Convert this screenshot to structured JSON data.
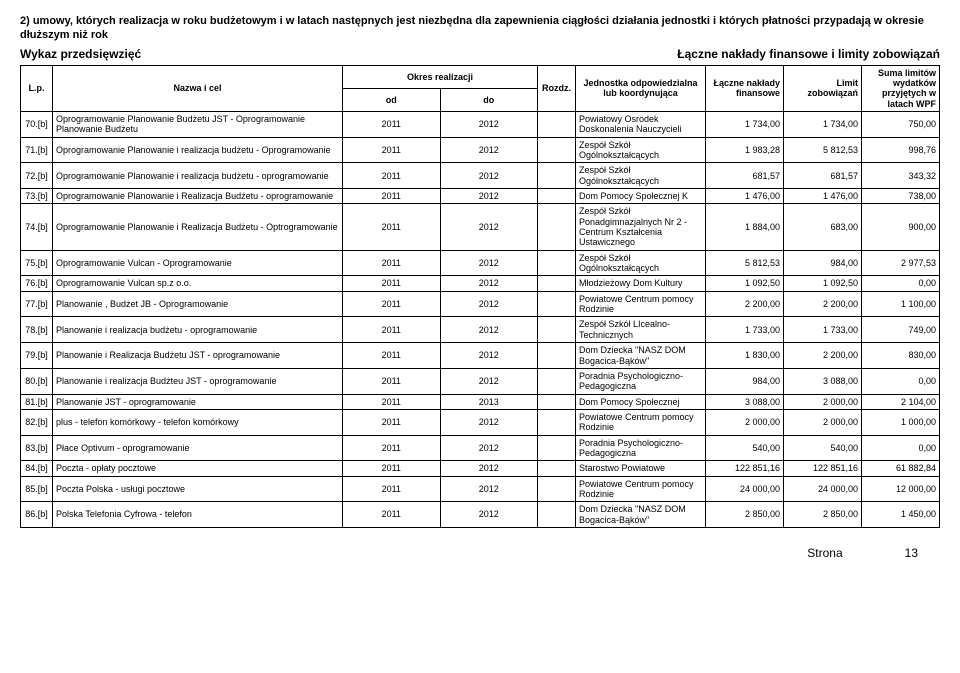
{
  "sectionTitle": "2) umowy, których realizacja w roku budżetowym i w latach następnych jest niezbędna dla zapewnienia ciągłości działania jednostki i których płatności przypadają w okresie dłuższym niż rok",
  "leftSubtitle": "Wykaz przedsięwzięć",
  "rightSubtitle": "Łączne nakłady finansowe i limity zobowiązań",
  "headers": {
    "lp": "L.p.",
    "nazwa": "Nazwa i cel",
    "okres": "Okres realizacji",
    "od": "od",
    "do": "do",
    "rozdz": "Rozdz.",
    "jednostka": "Jednostka odpowiedzialna lub koordynująca",
    "naklady": "Łączne nakłady finansowe",
    "limit": "Limit zobowiązań",
    "suma": "Suma limitów wydatków przyjętych w latach WPF"
  },
  "rows": [
    {
      "lp": "70.[b]",
      "nazwa": "Oprogramowanie Planowanie Budżetu JST - Oprogramowanie Planowanie Budżetu",
      "od": "2011",
      "do": "2012",
      "rozdz": "",
      "jedn": "Powiatowy Osrodek Doskonalenia Nauczycieli",
      "v1": "1 734,00",
      "v2": "1 734,00",
      "v3": "750,00"
    },
    {
      "lp": "71.[b]",
      "nazwa": "Oprogramowanie Planowanie i realizacja budżetu - Oprogramowanie",
      "od": "2011",
      "do": "2012",
      "rozdz": "",
      "jedn": "Zespół Szkół Ogólnokształcących",
      "v1": "1 983,28",
      "v2": "5 812,53",
      "v3": "998,76"
    },
    {
      "lp": "72.[b]",
      "nazwa": "Oprogramowanie Planowanie i realizacja budżetu - oprogramowanie",
      "od": "2011",
      "do": "2012",
      "rozdz": "",
      "jedn": "Zespół Szkół Ogólnokształcących",
      "v1": "681,57",
      "v2": "681,57",
      "v3": "343,32"
    },
    {
      "lp": "73.[b]",
      "nazwa": "Oprogramowanie Planowanie i Realizacja Budżetu - oprogramowanie",
      "od": "2011",
      "do": "2012",
      "rozdz": "",
      "jedn": "Dom Pomocy Społecznej K",
      "v1": "1 476,00",
      "v2": "1 476,00",
      "v3": "738,00"
    },
    {
      "lp": "74.[b]",
      "nazwa": "Oprogramowanie Planowanie i Realizacja Budżetu - Optrogramowanie",
      "od": "2011",
      "do": "2012",
      "rozdz": "",
      "jedn": "Zespół Szkół Ponadgimnazjalnych Nr 2 - Centrum Kształcenia Ustawicznego",
      "v1": "1 884,00",
      "v2": "683,00",
      "v3": "900,00"
    },
    {
      "lp": "75.[b]",
      "nazwa": "Oprogramowanie Vulcan - Oprogramowanie",
      "od": "2011",
      "do": "2012",
      "rozdz": "",
      "jedn": "Zespół Szkół Ogólnokształcących",
      "v1": "5 812,53",
      "v2": "984,00",
      "v3": "2 977,53"
    },
    {
      "lp": "76.[b]",
      "nazwa": "Oprogramowanie Vulcan sp.z o.o.",
      "od": "2011",
      "do": "2012",
      "rozdz": "",
      "jedn": "Młodzieżowy Dom Kultury",
      "v1": "1 092,50",
      "v2": "1 092,50",
      "v3": "0,00"
    },
    {
      "lp": "77.[b]",
      "nazwa": "Planowanie , Budżet JB - Oprogramowanie",
      "od": "2011",
      "do": "2012",
      "rozdz": "",
      "jedn": "Powiatowe Centrum pomocy Rodzinie",
      "v1": "2 200,00",
      "v2": "2 200,00",
      "v3": "1 100,00"
    },
    {
      "lp": "78.[b]",
      "nazwa": "Planowanie i realizacja budżetu - oprogramowanie",
      "od": "2011",
      "do": "2012",
      "rozdz": "",
      "jedn": "Zespół Szkół LIcealno-Technicznych",
      "v1": "1 733,00",
      "v2": "1 733,00",
      "v3": "749,00"
    },
    {
      "lp": "79.[b]",
      "nazwa": "Planowanie i Realizacja Budżetu JST - oprogramowanie",
      "od": "2011",
      "do": "2012",
      "rozdz": "",
      "jedn": "Dom Dziecka \"NASZ DOM Bogacica-Bąków\"",
      "v1": "1 830,00",
      "v2": "2 200,00",
      "v3": "830,00"
    },
    {
      "lp": "80.[b]",
      "nazwa": "Planowanie i realizacja Budżteu JST - oprogramowanie",
      "od": "2011",
      "do": "2012",
      "rozdz": "",
      "jedn": "Poradnia Psychologiczno-Pedagogiczna",
      "v1": "984,00",
      "v2": "3 088,00",
      "v3": "0,00"
    },
    {
      "lp": "81.[b]",
      "nazwa": "Planowanie JST - oprogramowanie",
      "od": "2011",
      "do": "2013",
      "rozdz": "",
      "jedn": "Dom Pomocy Społecznej",
      "v1": "3 088,00",
      "v2": "2 000,00",
      "v3": "2 104,00"
    },
    {
      "lp": "82.[b]",
      "nazwa": "plus - telefon komórkowy - telefon komórkowy",
      "od": "2011",
      "do": "2012",
      "rozdz": "",
      "jedn": "Powiatowe Centrum pomocy Rodzinie",
      "v1": "2 000,00",
      "v2": "2 000,00",
      "v3": "1 000,00"
    },
    {
      "lp": "83.[b]",
      "nazwa": "Płace Optivum  - oprogramowanie",
      "od": "2011",
      "do": "2012",
      "rozdz": "",
      "jedn": "Poradnia Psychologiczno-Pedagogiczna",
      "v1": "540,00",
      "v2": "540,00",
      "v3": "0,00"
    },
    {
      "lp": "84.[b]",
      "nazwa": "Poczta - opłaty pocztowe",
      "od": "2011",
      "do": "2012",
      "rozdz": "",
      "jedn": "Starostwo Powiatowe",
      "v1": "122 851,16",
      "v2": "122 851,16",
      "v3": "61 882,84"
    },
    {
      "lp": "85.[b]",
      "nazwa": "Poczta Polska - usługi pocztowe",
      "od": "2011",
      "do": "2012",
      "rozdz": "",
      "jedn": "Powiatowe Centrum pomocy Rodzinie",
      "v1": "24 000,00",
      "v2": "24 000,00",
      "v3": "12 000,00"
    },
    {
      "lp": "86.[b]",
      "nazwa": "Polska Telefonia Cyfrowa  - telefon",
      "od": "2011",
      "do": "2012",
      "rozdz": "",
      "jedn": "Dom Dziecka \"NASZ DOM Bogacica-Bąków\"",
      "v1": "2 850,00",
      "v2": "2 850,00",
      "v3": "1 450,00"
    }
  ],
  "footer": {
    "label": "Strona",
    "page": "13"
  }
}
